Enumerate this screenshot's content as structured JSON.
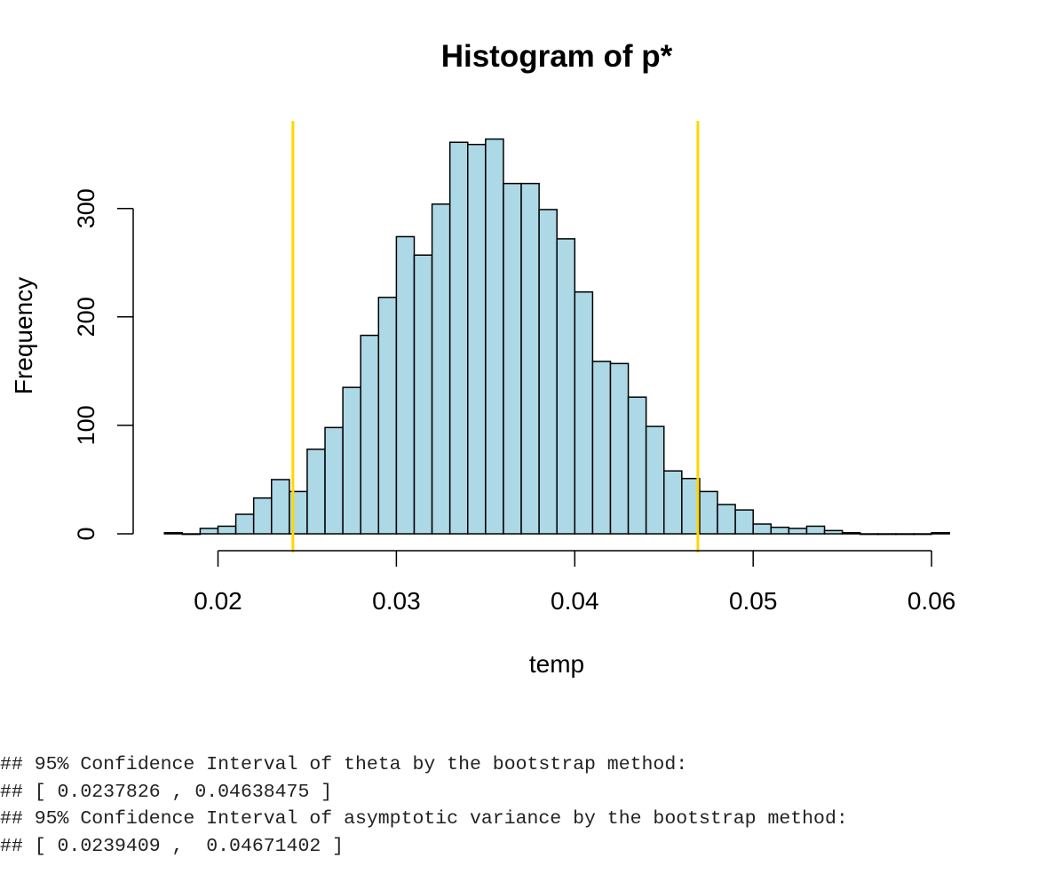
{
  "chart_data": {
    "type": "bar",
    "title": "Histogram of p*",
    "xlabel": "temp",
    "ylabel": "Frequency",
    "bin_width": 0.001,
    "bin_starts": [
      0.017,
      0.018,
      0.019,
      0.02,
      0.021,
      0.022,
      0.023,
      0.024,
      0.025,
      0.026,
      0.027,
      0.028,
      0.029,
      0.03,
      0.031,
      0.032,
      0.033,
      0.034,
      0.035,
      0.036,
      0.037,
      0.038,
      0.039,
      0.04,
      0.041,
      0.042,
      0.043,
      0.044,
      0.045,
      0.046,
      0.047,
      0.048,
      0.049,
      0.05,
      0.051,
      0.052,
      0.053,
      0.054,
      0.055,
      0.056,
      0.057,
      0.058,
      0.059,
      0.06
    ],
    "values": [
      1,
      0,
      5,
      7,
      18,
      33,
      50,
      39,
      78,
      98,
      135,
      183,
      218,
      274,
      257,
      304,
      361,
      359,
      364,
      323,
      323,
      299,
      272,
      223,
      159,
      157,
      126,
      99,
      58,
      51,
      39,
      27,
      22,
      9,
      6,
      5,
      7,
      3,
      1,
      0,
      0,
      0,
      0,
      1
    ],
    "x_ticks": [
      "0.02",
      "0.03",
      "0.04",
      "0.05",
      "0.06"
    ],
    "x_tick_values": [
      0.02,
      0.03,
      0.04,
      0.05,
      0.06
    ],
    "y_ticks": [
      "0",
      "100",
      "200",
      "300"
    ],
    "y_tick_values": [
      0,
      100,
      200,
      300
    ],
    "xlim": [
      0.015,
      0.061
    ],
    "ylim": [
      0,
      380
    ],
    "vlines": [
      0.0242,
      0.0469
    ],
    "colors": {
      "bar_fill": "#add8e6",
      "bar_stroke": "#000000",
      "vline": "#ffd700"
    }
  },
  "console": {
    "lines": [
      "## 95% Confidence Interval of theta by the bootstrap method:",
      "## [ 0.0237826 , 0.04638475 ]",
      "## 95% Confidence Interval of asymptotic variance by the bootstrap method:",
      "## [ 0.0239409 ,  0.04671402 ]"
    ]
  }
}
